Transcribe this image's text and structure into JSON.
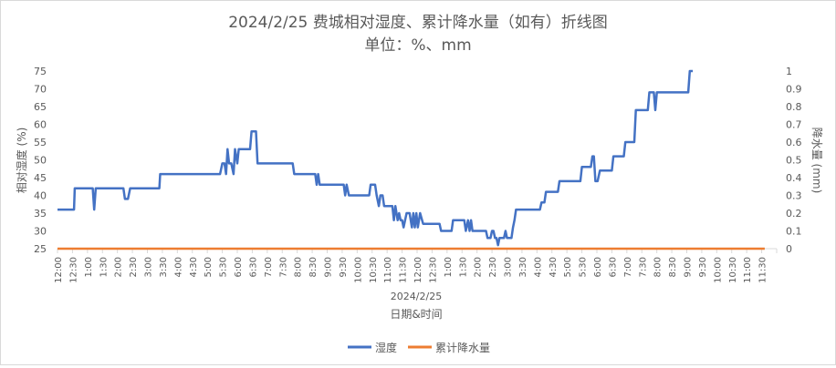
{
  "chart_data": {
    "type": "line",
    "title": "2024/2/25 费城相对湿度、累计降水量（如有）折线图",
    "subtitle": "单位：%、mm",
    "xlabel": "日期&时间",
    "date_label": "2024/2/25",
    "ylabel_left": "相对湿度 (%)",
    "ylabel_right": "降水量 (mm)",
    "ylim_left": [
      25,
      75
    ],
    "yticks_left": [
      25,
      30,
      35,
      40,
      45,
      50,
      55,
      60,
      65,
      70,
      75
    ],
    "ylim_right": [
      0,
      1
    ],
    "yticks_right": [
      "0",
      "0.1",
      "0.2",
      "0.3",
      "0.4",
      "0.5",
      "0.6",
      "0.7",
      "0.8",
      "0.9",
      "1"
    ],
    "xticks": [
      "12:00",
      "12:30",
      "1:00",
      "1:30",
      "2:00",
      "2:30",
      "3:00",
      "3:30",
      "4:00",
      "4:30",
      "5:00",
      "5:30",
      "6:00",
      "6:30",
      "7:00",
      "7:30",
      "8:00",
      "8:30",
      "9:00",
      "9:30",
      "10:00",
      "10:30",
      "11:00",
      "11:30",
      "12:00",
      "12:30",
      "1:00",
      "1:30",
      "2:00",
      "2:30",
      "3:00",
      "3:30",
      "4:00",
      "4:30",
      "5:00",
      "5:30",
      "6:00",
      "6:30",
      "7:00",
      "7:30",
      "8:00",
      "8:30",
      "9:00",
      "9:30",
      "10:00",
      "10:30",
      "11:00",
      "11:30"
    ],
    "grid": false,
    "legend_position": "bottom",
    "series": [
      {
        "name": "湿度",
        "color": "#4472c4",
        "axis": "left",
        "points": [
          [
            0,
            36
          ],
          [
            1.1,
            36
          ],
          [
            1.15,
            42
          ],
          [
            2.35,
            42
          ],
          [
            2.45,
            36
          ],
          [
            2.55,
            42
          ],
          [
            4.4,
            42
          ],
          [
            4.5,
            39
          ],
          [
            4.7,
            39
          ],
          [
            4.85,
            42
          ],
          [
            6.8,
            42
          ],
          [
            6.85,
            46
          ],
          [
            10.85,
            46
          ],
          [
            11,
            49
          ],
          [
            11.15,
            49
          ],
          [
            11.25,
            46
          ],
          [
            11.35,
            53
          ],
          [
            11.45,
            49
          ],
          [
            11.6,
            49
          ],
          [
            11.75,
            46
          ],
          [
            11.85,
            53
          ],
          [
            12,
            49
          ],
          [
            12.1,
            53
          ],
          [
            12.85,
            53
          ],
          [
            12.95,
            58
          ],
          [
            13.25,
            58
          ],
          [
            13.35,
            49
          ],
          [
            15.7,
            49
          ],
          [
            15.8,
            46
          ],
          [
            17.2,
            46
          ],
          [
            17.3,
            43
          ],
          [
            17.4,
            46
          ],
          [
            17.5,
            43
          ],
          [
            19.1,
            43
          ],
          [
            19.2,
            40
          ],
          [
            19.3,
            43
          ],
          [
            19.45,
            40
          ],
          [
            20.8,
            40
          ],
          [
            20.9,
            43
          ],
          [
            21.2,
            43
          ],
          [
            21.3,
            40
          ],
          [
            21.45,
            37
          ],
          [
            21.55,
            40
          ],
          [
            21.7,
            40
          ],
          [
            21.8,
            37
          ],
          [
            22.35,
            37
          ],
          [
            22.45,
            33
          ],
          [
            22.55,
            37
          ],
          [
            22.7,
            33
          ],
          [
            22.8,
            35
          ],
          [
            22.9,
            33
          ],
          [
            23,
            33
          ],
          [
            23.1,
            31
          ],
          [
            23.3,
            35
          ],
          [
            23.5,
            35
          ],
          [
            23.65,
            31
          ],
          [
            23.75,
            35
          ],
          [
            23.85,
            31
          ],
          [
            23.95,
            35
          ],
          [
            24.05,
            31
          ],
          [
            24.2,
            35
          ],
          [
            24.4,
            32
          ],
          [
            25.5,
            32
          ],
          [
            25.6,
            30
          ],
          [
            26.3,
            30
          ],
          [
            26.4,
            33
          ],
          [
            27.15,
            33
          ],
          [
            27.25,
            30
          ],
          [
            27.4,
            33
          ],
          [
            27.5,
            30
          ],
          [
            27.6,
            33
          ],
          [
            27.7,
            30
          ],
          [
            28.6,
            30
          ],
          [
            28.7,
            28
          ],
          [
            28.9,
            28
          ],
          [
            29,
            30
          ],
          [
            29.1,
            30
          ],
          [
            29.2,
            28
          ],
          [
            29.3,
            28
          ],
          [
            29.4,
            26
          ],
          [
            29.5,
            28
          ],
          [
            29.8,
            28
          ],
          [
            29.9,
            30
          ],
          [
            30,
            28
          ],
          [
            30.3,
            28
          ],
          [
            30.4,
            31
          ],
          [
            30.5,
            33
          ],
          [
            30.6,
            36
          ],
          [
            32.2,
            36
          ],
          [
            32.3,
            38
          ],
          [
            32.5,
            38
          ],
          [
            32.6,
            41
          ],
          [
            33.4,
            41
          ],
          [
            33.5,
            44
          ],
          [
            34.9,
            44
          ],
          [
            35,
            48
          ],
          [
            35.6,
            48
          ],
          [
            35.7,
            51
          ],
          [
            35.8,
            51
          ],
          [
            35.9,
            44
          ],
          [
            36.05,
            44
          ],
          [
            36.2,
            47
          ],
          [
            37,
            47
          ],
          [
            37.1,
            51
          ],
          [
            37.8,
            51
          ],
          [
            37.9,
            55
          ],
          [
            38.5,
            55
          ],
          [
            38.6,
            64
          ],
          [
            39.4,
            64
          ],
          [
            39.5,
            69
          ],
          [
            39.8,
            69
          ],
          [
            39.9,
            64
          ],
          [
            40,
            69
          ],
          [
            42.1,
            69
          ],
          [
            42.2,
            75
          ],
          [
            42.4,
            75
          ]
        ]
      },
      {
        "name": "累计降水量",
        "color": "#ed7d31",
        "axis": "right",
        "points": [
          [
            0,
            0
          ],
          [
            47.2,
            0
          ]
        ]
      }
    ]
  }
}
